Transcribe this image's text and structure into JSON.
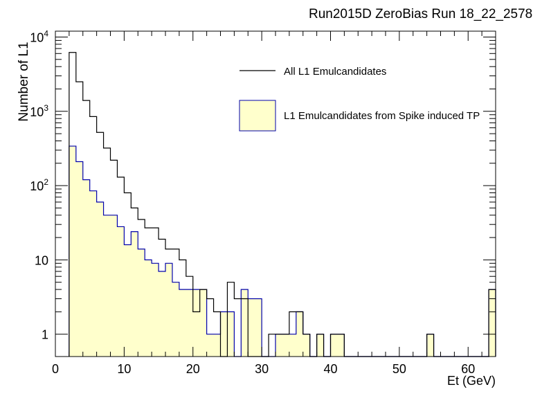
{
  "chart_data": {
    "type": "bar",
    "title": "Run2015D ZeroBias Run 18_22_2578",
    "xlabel": "Et (GeV)",
    "ylabel": "Number of L1",
    "xlim": [
      0,
      64
    ],
    "ylim": [
      0.5,
      12000
    ],
    "yscale": "log",
    "bin_width": 1,
    "x": [
      2,
      3,
      4,
      5,
      6,
      7,
      8,
      9,
      10,
      11,
      12,
      13,
      14,
      15,
      16,
      17,
      18,
      19,
      20,
      21,
      22,
      23,
      24,
      25,
      26,
      27,
      28,
      29,
      30,
      31,
      32,
      33,
      34,
      35,
      36,
      37,
      38,
      39,
      40,
      41,
      42,
      43,
      44,
      45,
      46,
      47,
      48,
      49,
      50,
      51,
      52,
      53,
      54,
      55,
      56,
      57,
      58,
      59,
      60,
      61,
      62,
      63
    ],
    "x_ticks": [
      "0",
      "10",
      "20",
      "30",
      "40",
      "50",
      "60"
    ],
    "y_ticks": [
      {
        "base": "1",
        "exp": ""
      },
      {
        "base": "10",
        "exp": ""
      },
      {
        "base": "10",
        "exp": "2"
      },
      {
        "base": "10",
        "exp": "3"
      },
      {
        "base": "10",
        "exp": "4"
      }
    ],
    "legend_position": "top-right",
    "series": [
      {
        "name": "All L1 Emulcandidates",
        "style": "outline",
        "color": "#000000",
        "values": [
          6200,
          2500,
          1400,
          850,
          520,
          320,
          220,
          130,
          80,
          50,
          35,
          27,
          27,
          19,
          14,
          14,
          10,
          6,
          2,
          4,
          3,
          2,
          0,
          5,
          3,
          3,
          0,
          0,
          0,
          1,
          1,
          1,
          2,
          2,
          1,
          0,
          1,
          0,
          1,
          1,
          0,
          0,
          0,
          0,
          0,
          0,
          0,
          0,
          0,
          0,
          0,
          0,
          1,
          0,
          0,
          0,
          0,
          0,
          0,
          0,
          0,
          4
        ]
      },
      {
        "name": "L1 Emulcandidates from Spike induced TP",
        "style": "filled",
        "color": "#0000aa",
        "fill": "#ffffcc",
        "values": [
          340,
          210,
          120,
          85,
          60,
          40,
          40,
          28,
          16,
          24,
          14,
          10,
          9,
          7,
          9,
          5,
          4,
          4,
          4,
          4,
          1,
          1,
          2,
          2,
          0,
          4,
          3,
          3,
          0,
          0,
          1,
          1,
          1,
          2,
          1,
          0,
          1,
          0,
          1,
          1,
          0,
          0,
          0,
          0,
          0,
          0,
          0,
          0,
          0,
          0,
          0,
          0,
          1,
          0,
          0,
          0,
          0,
          0,
          0,
          0,
          0,
          4
        ]
      }
    ]
  }
}
